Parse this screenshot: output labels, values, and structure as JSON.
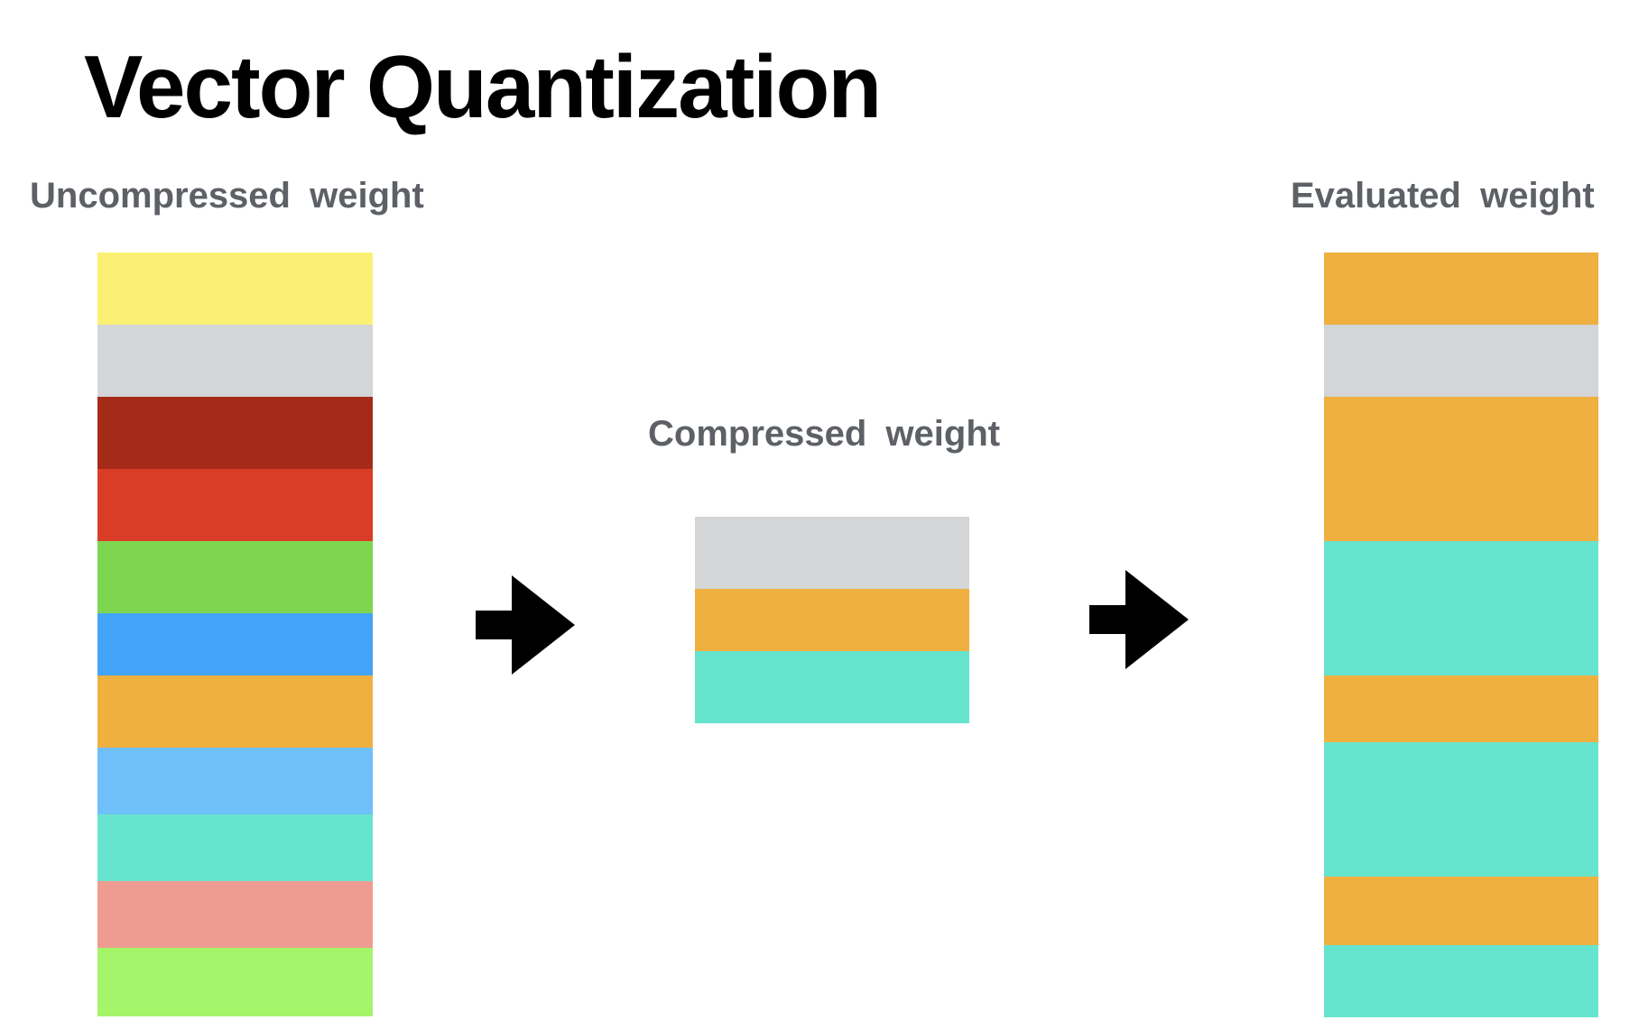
{
  "title": "Vector Quantization",
  "labels": {
    "uncompressed": "Uncompressed weight",
    "compressed": "Compressed weight",
    "evaluated": "Evaluated weight"
  },
  "colors": {
    "yellow": "#FBF073",
    "gray": "#D3D5D6",
    "dark_red": "#A52B18",
    "red": "#DA3D27",
    "green": "#7ED650",
    "blue": "#42A3F7",
    "orange": "#EFB040",
    "light_blue": "#6FBFF8",
    "teal": "#67E4CE",
    "salmon": "#EE9C91",
    "lime": "#A4F56A"
  },
  "stacks": {
    "uncompressed": [
      {
        "color": "yellow",
        "size": 1.0
      },
      {
        "color": "gray",
        "size": 1.0
      },
      {
        "color": "dark_red",
        "size": 1.0
      },
      {
        "color": "red",
        "size": 1.0
      },
      {
        "color": "green",
        "size": 1.0
      },
      {
        "color": "blue",
        "size": 0.86
      },
      {
        "color": "orange",
        "size": 1.0
      },
      {
        "color": "light_blue",
        "size": 0.93
      },
      {
        "color": "teal",
        "size": 0.93
      },
      {
        "color": "salmon",
        "size": 0.93
      },
      {
        "color": "lime",
        "size": 0.95
      }
    ],
    "compressed": [
      {
        "color": "gray",
        "size": 1.0
      },
      {
        "color": "orange",
        "size": 0.86
      },
      {
        "color": "teal",
        "size": 1.0
      }
    ],
    "evaluated": [
      {
        "color": "orange",
        "size": 1.0
      },
      {
        "color": "gray",
        "size": 1.0
      },
      {
        "color": "orange",
        "size": 1.0
      },
      {
        "color": "orange",
        "size": 1.0
      },
      {
        "color": "teal",
        "size": 1.86
      },
      {
        "color": "orange",
        "size": 0.93
      },
      {
        "color": "teal",
        "size": 1.86
      },
      {
        "color": "orange",
        "size": 0.95
      },
      {
        "color": "teal",
        "size": 1.0
      }
    ]
  }
}
